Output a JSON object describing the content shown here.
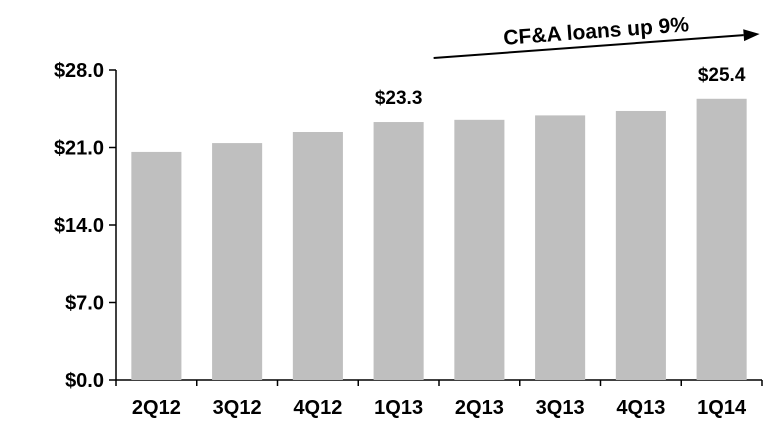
{
  "chart_data": {
    "type": "bar",
    "categories": [
      "2Q12",
      "3Q12",
      "4Q12",
      "1Q13",
      "2Q13",
      "3Q13",
      "4Q13",
      "1Q14"
    ],
    "values": [
      20.6,
      21.4,
      22.4,
      23.3,
      23.5,
      23.9,
      24.3,
      25.4
    ],
    "data_labels": [
      {
        "category": "1Q13",
        "text": "$23.3"
      },
      {
        "category": "1Q14",
        "text": "$25.4"
      }
    ],
    "y_ticks": [
      "$0.0",
      "$7.0",
      "$14.0",
      "$21.0",
      "$28.0"
    ],
    "y_tick_values": [
      0,
      7,
      14,
      21,
      28
    ],
    "ylim": [
      0,
      28
    ],
    "bar_color": "#bfbfbf",
    "grid": false,
    "annotation": {
      "text": "CF&A loans up 9%",
      "from_category": "1Q13",
      "to_category": "1Q14"
    }
  }
}
